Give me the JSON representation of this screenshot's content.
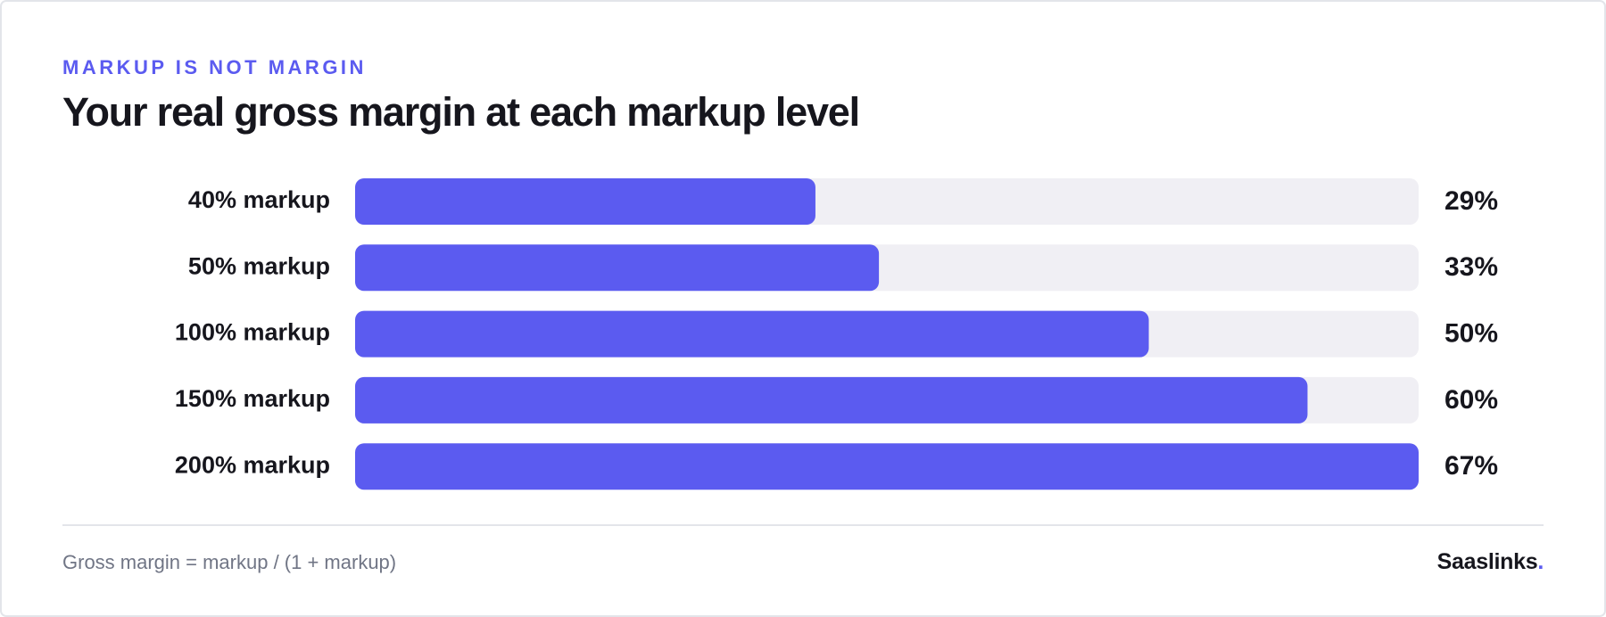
{
  "chart_data": {
    "type": "hbar",
    "eyebrow": "MARKUP IS NOT MARGIN",
    "title": "Your real gross margin at each markup level",
    "categories": [
      "40% markup",
      "50% markup",
      "100% markup",
      "150% markup",
      "200% markup"
    ],
    "values": [
      29,
      33,
      50,
      60,
      67
    ],
    "value_labels": [
      "29%",
      "33%",
      "50%",
      "60%",
      "67%"
    ],
    "color": "#5b5bf0",
    "xlim": [
      0,
      67
    ],
    "footnote": "Gross margin = markup / (1 + markup)",
    "brand": {
      "name": "Saaslinks",
      "dot": "."
    }
  }
}
